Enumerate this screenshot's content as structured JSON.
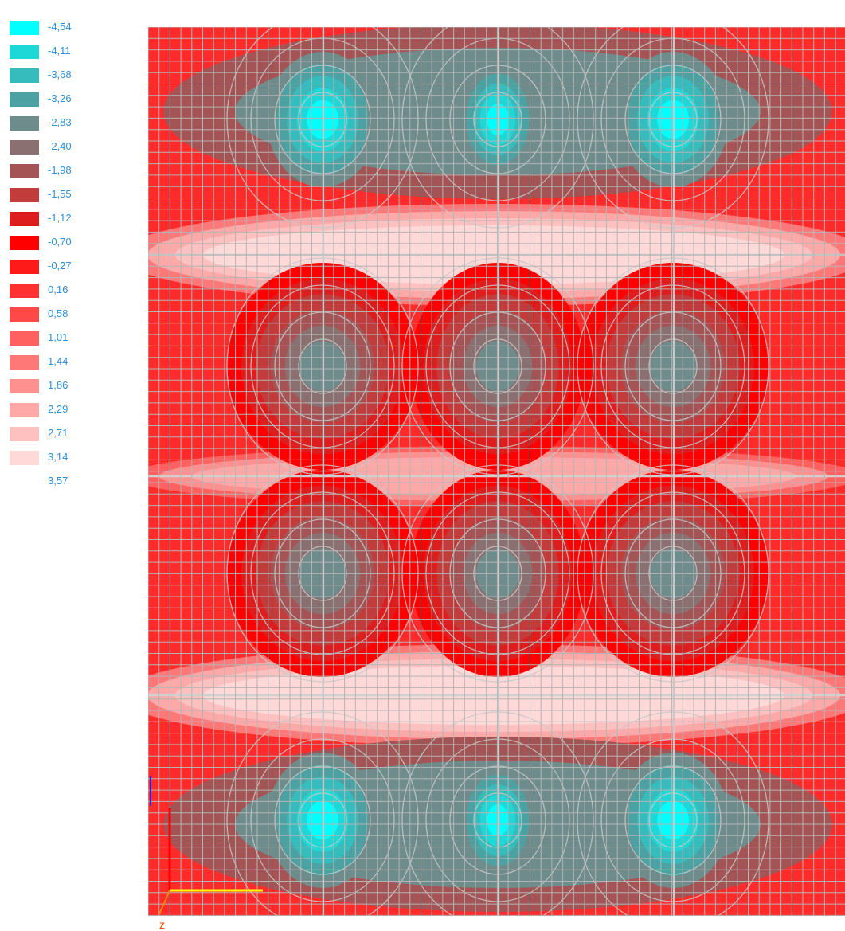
{
  "legend": {
    "entries": [
      {
        "label": "-4,54",
        "color": "#00ffff"
      },
      {
        "label": "-4,11",
        "color": "#1ed8d8"
      },
      {
        "label": "-3,68",
        "color": "#36bcbc"
      },
      {
        "label": "-3,26",
        "color": "#4ca2a2"
      },
      {
        "label": "-2,83",
        "color": "#6e8c8c"
      },
      {
        "label": "-2,40",
        "color": "#8a7070"
      },
      {
        "label": "-1,98",
        "color": "#a45454"
      },
      {
        "label": "-1,55",
        "color": "#c23c3c"
      },
      {
        "label": "-1,12",
        "color": "#de1e1e"
      },
      {
        "label": "-0,70",
        "color": "#ff0000"
      },
      {
        "label": "-0,27",
        "color": "#ff1a1a"
      },
      {
        "label": "0,16",
        "color": "#ff3030"
      },
      {
        "label": "0,58",
        "color": "#ff4848"
      },
      {
        "label": "1,01",
        "color": "#ff6060"
      },
      {
        "label": "1,44",
        "color": "#ff7878"
      },
      {
        "label": "1,86",
        "color": "#ff9090"
      },
      {
        "label": "2,29",
        "color": "#ffa8a8"
      },
      {
        "label": "2,71",
        "color": "#ffc0c0"
      },
      {
        "label": "3,14",
        "color": "#ffd8d8"
      },
      {
        "label": "3,57",
        "color": "#ffffff"
      }
    ]
  },
  "axis": {
    "z_label": "z",
    "colors": {
      "vertical": "#ff0000",
      "horizontal": "#ffff00",
      "z": "#ff8800"
    }
  },
  "mesh": {
    "grid_color": "#b4b4b4",
    "contour_color": "#c8c8c8",
    "marker_color": "#2020ff"
  }
}
